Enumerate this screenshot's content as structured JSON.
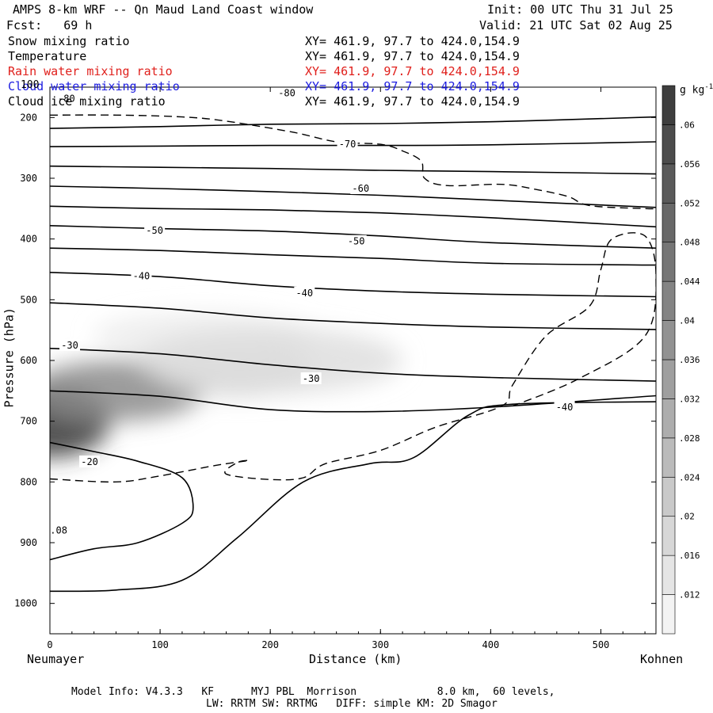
{
  "header": {
    "title": "AMPS 8-km WRF -- Qn Maud Land Coast window",
    "init": "Init: 00 UTC Thu 31 Jul 25",
    "fcst": "Fcst:   69 h",
    "valid": "Valid: 21 UTC Sat 02 Aug 25"
  },
  "fields": [
    {
      "label": "Snow mixing ratio",
      "xy": "XY= 461.9, 97.7 to 424.0,154.9",
      "color": "#000000"
    },
    {
      "label": "Temperature",
      "xy": "XY= 461.9, 97.7 to 424.0,154.9",
      "color": "#000000"
    },
    {
      "label": "Rain water mixing ratio",
      "xy": "XY= 461.9, 97.7 to 424.0,154.9",
      "color": "#e0201c"
    },
    {
      "label": "Cloud water mixing ratio",
      "xy": "XY= 461.9, 97.7 to 424.0,154.9",
      "color": "#1c1ce0"
    },
    {
      "label": "Cloud ice mixing ratio",
      "xy": "XY= 461.9, 97.7 to 424.0,154.9",
      "color": "#000000"
    }
  ],
  "footer": {
    "line1": "Model Info: V4.3.3   KF      MYJ PBL  Morrison             8.0 km,  60 levels,",
    "line2": "LW: RRTM SW: RRTMG   DIFF: simple KM: 2D Smagor"
  },
  "chart_data": {
    "type": "contour",
    "xlabel": "Distance (km)",
    "ylabel": "Pressure (hPa)",
    "xlim": [
      0,
      550
    ],
    "ylim": [
      1050,
      150
    ],
    "x_ticks": [
      0,
      100,
      200,
      300,
      400,
      500
    ],
    "y_ticks": [
      200,
      300,
      400,
      500,
      600,
      700,
      800,
      900,
      1000
    ],
    "y_top_label": "100",
    "left_location": "Neumayer",
    "right_location": "Kohnen",
    "colorbar": {
      "unit": "g kg",
      "unit_exp": "-1",
      "ticks": [
        ".012",
        ".016",
        ".02",
        ".024",
        ".028",
        ".032",
        ".036",
        ".04",
        ".044",
        ".048",
        ".052",
        ".056",
        ".06"
      ],
      "min": 0.008,
      "max": 0.064,
      "step": 0.004
    },
    "temperature_labels": [
      {
        "text": "-80",
        "x": 15,
        "p": 169
      },
      {
        "text": "-80",
        "x": 215,
        "p": 160
      },
      {
        "text": "-70",
        "x": 270,
        "p": 244
      },
      {
        "text": "-60",
        "x": 282,
        "p": 317
      },
      {
        "text": "-50",
        "x": 95,
        "p": 386
      },
      {
        "text": "-50",
        "x": 278,
        "p": 404
      },
      {
        "text": "-40",
        "x": 83,
        "p": 461
      },
      {
        "text": "-40",
        "x": 231,
        "p": 489
      },
      {
        "text": "-30",
        "x": 18,
        "p": 575
      },
      {
        "text": "-30",
        "x": 237,
        "p": 630
      },
      {
        "text": "-40",
        "x": 467,
        "p": 677
      },
      {
        "text": "-20",
        "x": 36,
        "p": 767
      }
    ],
    "snow_label": {
      "text": ".08",
      "x": 8,
      "p": 880
    },
    "temperature_isotherms": [
      [
        [
          0,
          218
        ],
        [
          100,
          215
        ],
        [
          200,
          211
        ],
        [
          300,
          210
        ],
        [
          400,
          207
        ],
        [
          460,
          204
        ],
        [
          550,
          199
        ]
      ],
      [
        [
          0,
          248
        ],
        [
          100,
          247
        ],
        [
          200,
          246
        ],
        [
          300,
          246
        ],
        [
          400,
          245
        ],
        [
          550,
          240
        ]
      ],
      [
        [
          0,
          280
        ],
        [
          100,
          282
        ],
        [
          200,
          284
        ],
        [
          300,
          287
        ],
        [
          400,
          289
        ],
        [
          550,
          293
        ]
      ],
      [
        [
          0,
          313
        ],
        [
          100,
          317
        ],
        [
          200,
          322
        ],
        [
          300,
          328
        ],
        [
          400,
          336
        ],
        [
          550,
          348
        ]
      ],
      [
        [
          0,
          346
        ],
        [
          100,
          350
        ],
        [
          200,
          352
        ],
        [
          300,
          357
        ],
        [
          400,
          365
        ],
        [
          550,
          380
        ]
      ],
      [
        [
          0,
          378
        ],
        [
          100,
          383
        ],
        [
          200,
          387
        ],
        [
          300,
          395
        ],
        [
          400,
          406
        ],
        [
          550,
          415
        ]
      ],
      [
        [
          0,
          415
        ],
        [
          100,
          419
        ],
        [
          200,
          426
        ],
        [
          300,
          432
        ],
        [
          400,
          440
        ],
        [
          550,
          443
        ]
      ],
      [
        [
          0,
          455
        ],
        [
          100,
          462
        ],
        [
          200,
          477
        ],
        [
          300,
          486
        ],
        [
          400,
          491
        ],
        [
          550,
          495
        ]
      ],
      [
        [
          0,
          505
        ],
        [
          100,
          514
        ],
        [
          200,
          530
        ],
        [
          300,
          539
        ],
        [
          400,
          545
        ],
        [
          550,
          549
        ]
      ],
      [
        [
          0,
          580
        ],
        [
          100,
          589
        ],
        [
          200,
          607
        ],
        [
          300,
          621
        ],
        [
          400,
          628
        ],
        [
          550,
          634
        ]
      ],
      [
        [
          0,
          650
        ],
        [
          100,
          659
        ],
        [
          200,
          681
        ],
        [
          300,
          684
        ],
        [
          400,
          677
        ],
        [
          550,
          658
        ]
      ],
      [
        [
          0,
          735
        ],
        [
          40,
          750
        ],
        [
          80,
          766
        ],
        [
          120,
          793
        ],
        [
          130,
          842
        ],
        [
          120,
          868
        ],
        [
          80,
          900
        ],
        [
          40,
          910
        ],
        [
          0,
          928
        ]
      ],
      [
        [
          0,
          980
        ],
        [
          60,
          978
        ],
        [
          120,
          962
        ],
        [
          170,
          892
        ],
        [
          230,
          800
        ],
        [
          290,
          770
        ],
        [
          330,
          760
        ],
        [
          380,
          690
        ],
        [
          420,
          672
        ],
        [
          550,
          668
        ]
      ]
    ],
    "cloud_ice_contours": [
      [
        [
          0,
          795
        ],
        [
          60,
          800
        ],
        [
          100,
          790
        ],
        [
          150,
          773
        ],
        [
          180,
          765
        ],
        [
          170,
          768
        ],
        [
          160,
          787
        ],
        [
          200,
          796
        ],
        [
          230,
          793
        ],
        [
          250,
          770
        ],
        [
          300,
          748
        ],
        [
          350,
          710
        ],
        [
          410,
          675
        ],
        [
          420,
          640
        ],
        [
          450,
          560
        ],
        [
          490,
          510
        ],
        [
          500,
          450
        ],
        [
          510,
          400
        ],
        [
          540,
          395
        ],
        [
          550,
          460
        ],
        [
          540,
          560
        ],
        [
          480,
          630
        ],
        [
          420,
          675
        ]
      ],
      [
        [
          0,
          196
        ],
        [
          60,
          196
        ],
        [
          120,
          199
        ],
        [
          160,
          206
        ],
        [
          220,
          224
        ],
        [
          260,
          240
        ],
        [
          300,
          244
        ],
        [
          320,
          255
        ],
        [
          337,
          272
        ],
        [
          340,
          300
        ],
        [
          360,
          312
        ],
        [
          410,
          310
        ],
        [
          440,
          318
        ],
        [
          470,
          330
        ],
        [
          490,
          345
        ],
        [
          540,
          350
        ],
        [
          550,
          350
        ]
      ]
    ],
    "shading_blobs": [
      {
        "x": 0,
        "p": 700,
        "value": 0.064,
        "rx": 55,
        "rp": 60
      },
      {
        "x": 60,
        "p": 650,
        "value": 0.04,
        "rx": 80,
        "rp": 50
      },
      {
        "x": 170,
        "p": 620,
        "value": 0.02,
        "rx": 70,
        "rp": 40
      },
      {
        "x": 140,
        "p": 560,
        "value": 0.012,
        "rx": 100,
        "rp": 40
      },
      {
        "x": 200,
        "p": 600,
        "value": 0.016,
        "rx": 120,
        "rp": 55
      }
    ]
  }
}
